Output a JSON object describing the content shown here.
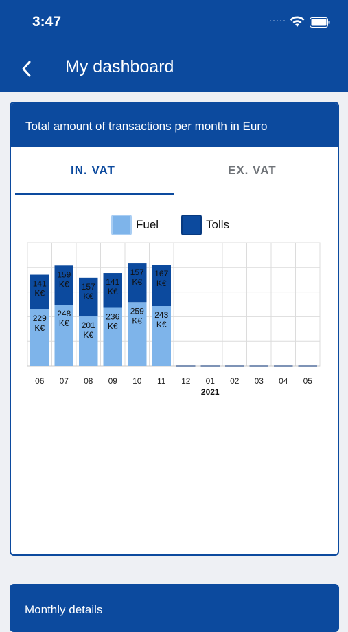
{
  "status_bar": {
    "time": "3:47",
    "dots": "·····"
  },
  "header": {
    "title": "My dashboard",
    "back_icon": "chevron-left-icon"
  },
  "card": {
    "title": "Total amount of transactions per month in Euro",
    "tabs": [
      {
        "label": "IN. VAT",
        "selected": true
      },
      {
        "label": "EX. VAT",
        "selected": false
      }
    ]
  },
  "chart_data": {
    "type": "bar",
    "stacked": true,
    "categories": [
      "06",
      "07",
      "08",
      "09",
      "10",
      "11",
      "12",
      "01",
      "02",
      "03",
      "04",
      "05"
    ],
    "year_label": "2021",
    "year_label_category": "01",
    "value_unit": "K€",
    "ylim": [
      0,
      500
    ],
    "grid": true,
    "legend_position": "top",
    "series": [
      {
        "name": "Fuel",
        "color": "#7eb4ea",
        "values": [
          229,
          248,
          201,
          236,
          259,
          243,
          0,
          0,
          0,
          0,
          0,
          0
        ]
      },
      {
        "name": "Tolls",
        "color": "#0c4a9e",
        "values": [
          141,
          159,
          157,
          141,
          157,
          167,
          0,
          0,
          0,
          0,
          0,
          0
        ]
      }
    ]
  },
  "details_card": {
    "title": "Monthly details"
  }
}
